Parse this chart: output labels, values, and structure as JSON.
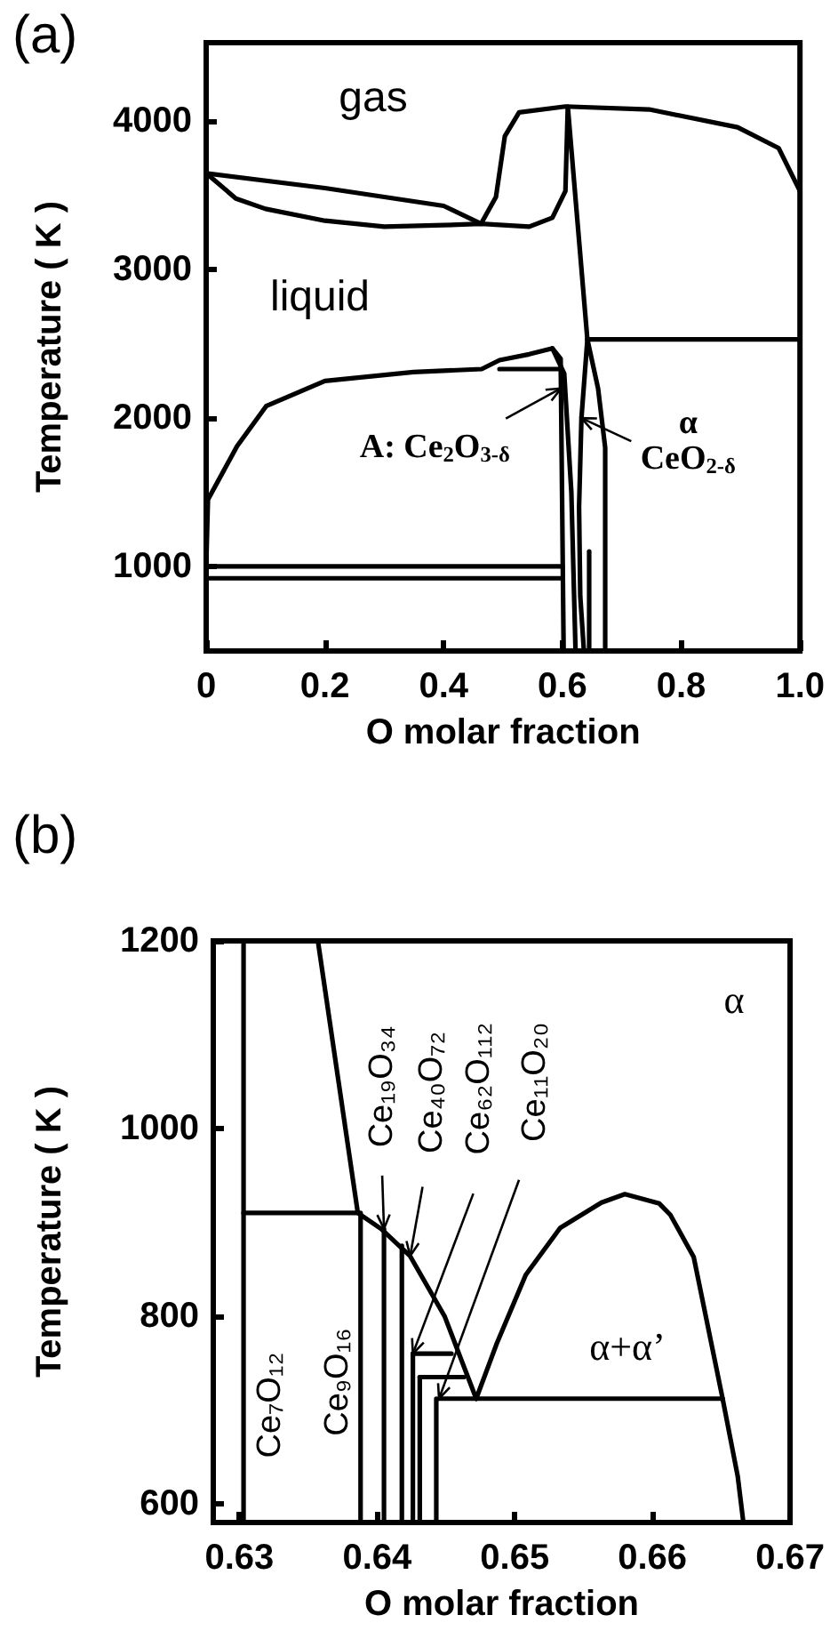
{
  "chart_data": [
    {
      "type": "line",
      "title": "(a)",
      "xlabel": "O molar fraction",
      "ylabel": "Temperature ( K )",
      "marker": "none",
      "xlim": [
        0,
        1
      ],
      "ylim": [
        430,
        4530
      ],
      "xticks": [
        0,
        0.2,
        0.4,
        0.6,
        0.8,
        {
          "value": 1,
          "label": "1.0"
        }
      ],
      "yticks": [
        1000,
        2000,
        3000,
        4000
      ],
      "series": [
        {
          "color": "#000000",
          "x": [
            0,
            0.2,
            0.4,
            0.463,
            0.488,
            0.503,
            0.527,
            0.605,
            0.746,
            0.895,
            0.964,
            1.0
          ],
          "values": [
            3650,
            3550,
            3430,
            3310,
            3490,
            3900,
            4060,
            4100,
            4080,
            3960,
            3820,
            3530
          ]
        },
        {
          "color": "#000000",
          "x": [
            0,
            0.05,
            0.1,
            0.2,
            0.3,
            0.4,
            0.463,
            0.544,
            0.583,
            0.605,
            0.609,
            0.642,
            1.0
          ],
          "values": [
            3650,
            3480,
            3410,
            3330,
            3290,
            3300,
            3310,
            3290,
            3350,
            3530,
            4100,
            2530,
            2530
          ]
        },
        {
          "color": "#000000",
          "x": [
            0,
            0.003,
            0.052,
            0.101,
            0.2,
            0.349,
            0.464,
            0.494,
            0.544,
            0.583,
            0.597,
            0.602
          ],
          "values": [
            990,
            1450,
            1810,
            2080,
            2250,
            2310,
            2330,
            2390,
            2430,
            2470,
            2400,
            440
          ]
        },
        {
          "color": "#000000",
          "x": [
            0.583,
            0.603,
            0.615,
            0.622
          ],
          "values": [
            2470,
            2300,
            1500,
            440
          ]
        },
        {
          "color": "#000000",
          "x": [
            0.494,
            0.597
          ],
          "values": [
            2330,
            2330
          ]
        },
        {
          "color": "#000000",
          "x": [
            0,
            0.6
          ],
          "values": [
            1000,
            1000
          ]
        },
        {
          "color": "#000000",
          "x": [
            0,
            0.6
          ],
          "values": [
            920,
            920
          ]
        },
        {
          "color": "#000000",
          "x": [
            0.642,
            0.632,
            0.628,
            0.63,
            0.636
          ],
          "values": [
            2530,
            2000,
            1400,
            800,
            440
          ]
        },
        {
          "color": "#000000",
          "x": [
            0.642,
            0.66,
            0.672,
            0.672
          ],
          "values": [
            2530,
            2200,
            1800,
            440
          ]
        },
        {
          "color": "#000000",
          "x": [
            0.645,
            0.645
          ],
          "values": [
            440,
            1100
          ]
        }
      ],
      "annotations": [
        "gas",
        "liquid",
        {
          "text": "A: Ce$_{2}$O$_{3-δ}$",
          "x": 0.5975,
          "y": 2200
        },
        {
          "text": "α\nCeO$_{2-δ}$",
          "x": 0.632,
          "y": 2000
        }
      ]
    },
    {
      "type": "line",
      "title": "(b)",
      "xlabel": "O molar fraction",
      "ylabel": "Temperature ( K )",
      "marker": "none",
      "xlim": [
        0.6281,
        0.67
      ],
      "ylim": [
        580,
        1200
      ],
      "xticks": [
        0.63,
        0.64,
        0.65,
        0.66,
        0.67
      ],
      "yticks": [
        600,
        800,
        1000,
        1200
      ],
      "series": [
        {
          "color": "#000000",
          "x": [
            0.6303,
            0.6303
          ],
          "values": [
            580,
            1200
          ]
        },
        {
          "color": "#000000",
          "x": [
            0.6357,
            0.6386,
            0.6403,
            0.6424,
            0.6449,
            0.6472
          ],
          "values": [
            1200,
            910,
            893,
            864,
            800,
            712
          ]
        },
        {
          "color": "#000000",
          "x": [
            0.6303,
            0.6386
          ],
          "values": [
            910,
            910
          ]
        },
        {
          "color": "#000000",
          "x": [
            0.6472,
            0.6487,
            0.6508,
            0.6533,
            0.6563,
            0.658,
            0.6605,
            0.6613,
            0.663,
            0.6651,
            0.6662,
            0.6666
          ],
          "values": [
            712,
            771,
            844,
            894,
            921,
            930,
            920,
            908,
            863,
            712,
            629,
            581
          ]
        },
        {
          "color": "#000000",
          "x": [
            0.6445,
            0.6651
          ],
          "values": [
            712,
            712
          ]
        },
        {
          "color": "#000000",
          "x": [
            0.6388,
            0.6388
          ],
          "values": [
            580,
            910
          ]
        },
        {
          "color": "#000000",
          "x": [
            0.6405,
            0.6405
          ],
          "values": [
            580,
            893
          ]
        },
        {
          "color": "#000000",
          "x": [
            0.6418,
            0.6418
          ],
          "values": [
            580,
            875
          ]
        },
        {
          "color": "#000000",
          "x": [
            0.6426,
            0.6426
          ],
          "values": [
            580,
            760
          ]
        },
        {
          "color": "#000000",
          "x": [
            0.6426,
            0.6454
          ],
          "values": [
            760,
            760
          ]
        },
        {
          "color": "#000000",
          "x": [
            0.6431,
            0.6431
          ],
          "values": [
            580,
            735
          ]
        },
        {
          "color": "#000000",
          "x": [
            0.6431,
            0.6463
          ],
          "values": [
            735,
            735
          ]
        },
        {
          "color": "#000000",
          "x": [
            0.6443,
            0.6443
          ],
          "values": [
            580,
            712
          ]
        }
      ],
      "annotations": [
        "α",
        "α+α’",
        "Ce₇O₁₂",
        "Ce₉O₁₆",
        {
          "text": "Ce₁₉O₃₄",
          "x": 0.6405,
          "y": 893
        },
        {
          "text": "Ce₄₀O₇₂",
          "x": 0.6424,
          "y": 864
        },
        {
          "text": "Ce₆₂O₁₁₂",
          "x": 0.6426,
          "y": 760
        },
        {
          "text": "Ce₁₁O₂₀",
          "x": 0.6445,
          "y": 712
        }
      ]
    }
  ]
}
